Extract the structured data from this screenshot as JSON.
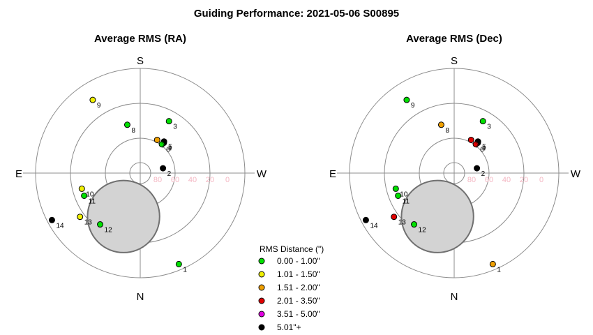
{
  "page_title": "Guiding Performance: 2021-05-06 S00895",
  "chart_data": [
    {
      "type": "scatter",
      "projection": "polar-sky",
      "title": "Average RMS (RA)",
      "directions": [
        "S",
        "W",
        "N",
        "E"
      ],
      "altitude_ticks": [
        "80",
        "60",
        "40",
        "20",
        "0"
      ],
      "points": [
        {
          "label": "1",
          "az": 157,
          "alt": 5,
          "cls": 0
        },
        {
          "label": "2",
          "az": 78,
          "alt": 70,
          "cls": 5
        },
        {
          "label": "3",
          "az": 29,
          "alt": 39,
          "cls": 0
        },
        {
          "label": "4",
          "az": 38,
          "alt": 57,
          "cls": 5
        },
        {
          "label": "5",
          "az": 37,
          "alt": 56,
          "cls": 5
        },
        {
          "label": "6",
          "az": 37,
          "alt": 59,
          "cls": 0
        },
        {
          "label": "7",
          "az": 27,
          "alt": 58,
          "cls": 2
        },
        {
          "label": "8",
          "az": -15,
          "alt": 47,
          "cls": 0
        },
        {
          "label": "9",
          "az": -33,
          "alt": 15,
          "cls": 1
        },
        {
          "label": "10",
          "az": -105,
          "alt": 38,
          "cls": 1
        },
        {
          "label": "11",
          "az": -112,
          "alt": 38,
          "cls": 0
        },
        {
          "label": "12",
          "az": -142,
          "alt": 34,
          "cls": 0
        },
        {
          "label": "13",
          "az": -126,
          "alt": 26,
          "cls": 1
        },
        {
          "label": "14",
          "az": -118,
          "alt": 4,
          "cls": 5
        }
      ],
      "moon": {
        "az": -159,
        "alt": 50,
        "radius_deg": 31
      }
    },
    {
      "type": "scatter",
      "projection": "polar-sky",
      "title": "Average RMS (Dec)",
      "directions": [
        "S",
        "W",
        "N",
        "E"
      ],
      "altitude_ticks": [
        "80",
        "60",
        "40",
        "20",
        "0"
      ],
      "points": [
        {
          "label": "1",
          "az": 157,
          "alt": 5,
          "cls": 2
        },
        {
          "label": "2",
          "az": 78,
          "alt": 70,
          "cls": 5
        },
        {
          "label": "3",
          "az": 29,
          "alt": 39,
          "cls": 0
        },
        {
          "label": "4",
          "az": 38,
          "alt": 57,
          "cls": 5
        },
        {
          "label": "5",
          "az": 37,
          "alt": 56,
          "cls": 5
        },
        {
          "label": "6",
          "az": 37,
          "alt": 59,
          "cls": 3
        },
        {
          "label": "7",
          "az": 27,
          "alt": 58,
          "cls": 3
        },
        {
          "label": "8",
          "az": -15,
          "alt": 47,
          "cls": 2
        },
        {
          "label": "9",
          "az": -33,
          "alt": 15,
          "cls": 0
        },
        {
          "label": "10",
          "az": -105,
          "alt": 38,
          "cls": 0
        },
        {
          "label": "11",
          "az": -112,
          "alt": 38,
          "cls": 0
        },
        {
          "label": "12",
          "az": -142,
          "alt": 34,
          "cls": 0
        },
        {
          "label": "13",
          "az": -126,
          "alt": 26,
          "cls": 3
        },
        {
          "label": "14",
          "az": -118,
          "alt": 4,
          "cls": 5
        }
      ],
      "moon": {
        "az": -159,
        "alt": 50,
        "radius_deg": 31
      }
    }
  ],
  "legend": {
    "title": "RMS Distance (\")",
    "entries": [
      {
        "label": "0.00 - 1.00\"",
        "color": "#00e000"
      },
      {
        "label": "1.01 - 1.50\"",
        "color": "#f0f000"
      },
      {
        "label": "1.51 - 2.00\"",
        "color": "#f0a000"
      },
      {
        "label": "2.01 - 3.50\"",
        "color": "#e00000"
      },
      {
        "label": "3.51 - 5.00\"",
        "color": "#e000e0"
      },
      {
        "label": "5.01\"+",
        "color": "#000000"
      }
    ]
  },
  "colors": {
    "grid": "#8c8c8c",
    "tick_label": "#f4b6c2",
    "moon_fill": "#d3d3d3",
    "moon_stroke": "#707070"
  }
}
